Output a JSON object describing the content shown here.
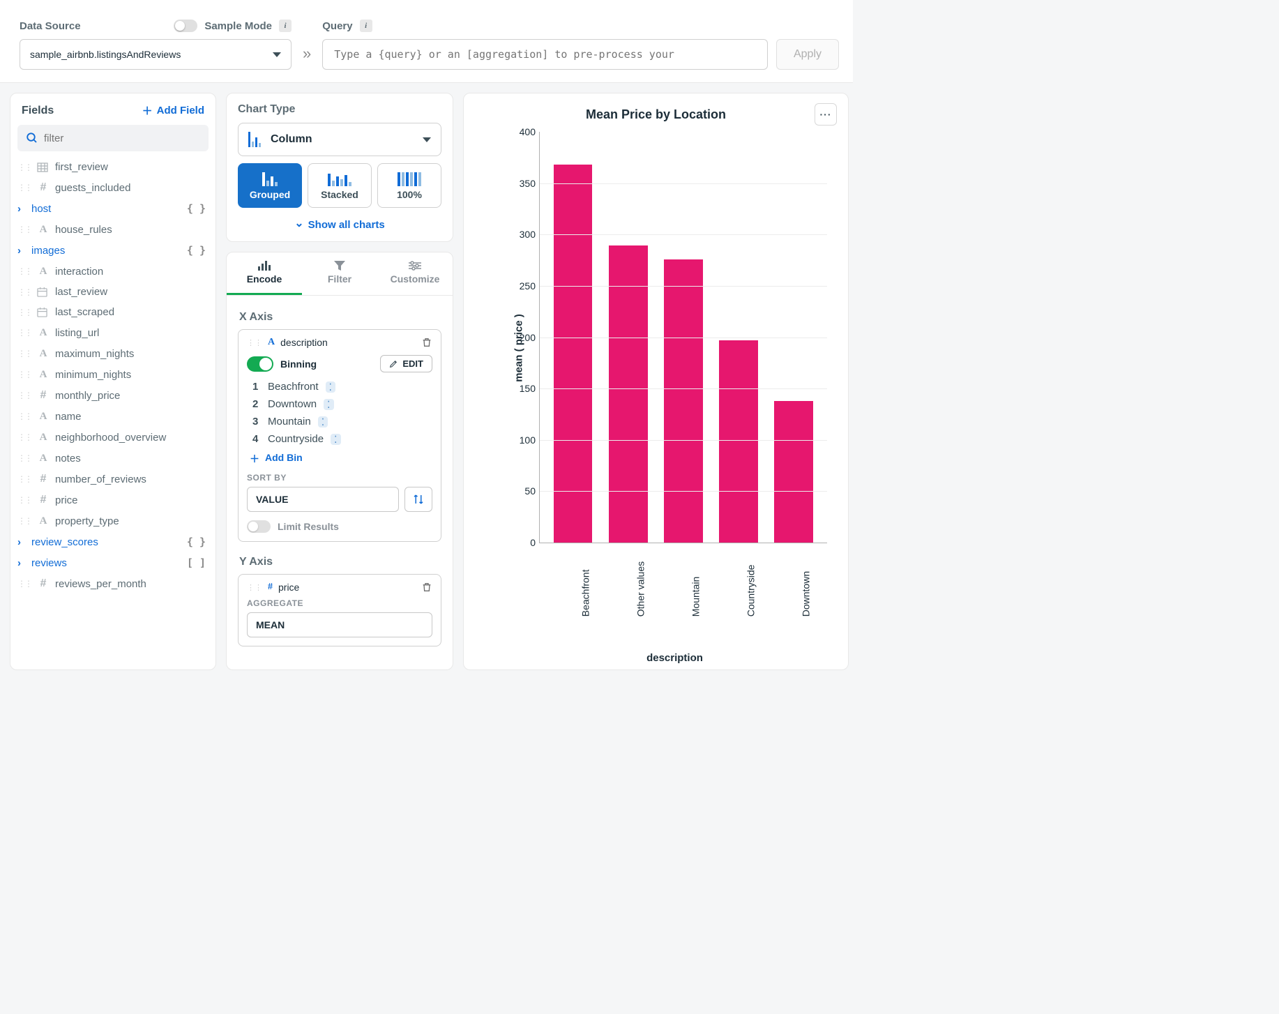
{
  "topbar": {
    "data_source_label": "Data Source",
    "sample_mode_label": "Sample Mode",
    "data_source_value": "sample_airbnb.listingsAndReviews",
    "query_label": "Query",
    "query_placeholder": "Type a {query} or an [aggregation] to pre-process your",
    "apply_label": "Apply"
  },
  "fields_panel": {
    "title": "Fields",
    "add_field_label": "Add Field",
    "filter_placeholder": "filter",
    "items": [
      {
        "icon": "table",
        "label": "first_review"
      },
      {
        "icon": "hash",
        "label": "guests_included"
      },
      {
        "icon": "expand",
        "label": "host",
        "suffix": "{ }"
      },
      {
        "icon": "text",
        "label": "house_rules"
      },
      {
        "icon": "expand",
        "label": "images",
        "suffix": "{ }"
      },
      {
        "icon": "text",
        "label": "interaction"
      },
      {
        "icon": "calendar",
        "label": "last_review"
      },
      {
        "icon": "calendar",
        "label": "last_scraped"
      },
      {
        "icon": "text",
        "label": "listing_url"
      },
      {
        "icon": "text",
        "label": "maximum_nights"
      },
      {
        "icon": "text",
        "label": "minimum_nights"
      },
      {
        "icon": "hash",
        "label": "monthly_price"
      },
      {
        "icon": "text",
        "label": "name"
      },
      {
        "icon": "text",
        "label": "neighborhood_overview"
      },
      {
        "icon": "text",
        "label": "notes"
      },
      {
        "icon": "hash",
        "label": "number_of_reviews"
      },
      {
        "icon": "hash",
        "label": "price"
      },
      {
        "icon": "text",
        "label": "property_type"
      },
      {
        "icon": "expand",
        "label": "review_scores",
        "suffix": "{ }"
      },
      {
        "icon": "expand",
        "label": "reviews",
        "suffix": "[ ]"
      },
      {
        "icon": "hash",
        "label": "reviews_per_month"
      }
    ]
  },
  "chart_type": {
    "title": "Chart Type",
    "selected": "Column",
    "subtypes": [
      "Grouped",
      "Stacked",
      "100%"
    ],
    "show_all": "Show all charts"
  },
  "encode": {
    "tabs": [
      "Encode",
      "Filter",
      "Customize"
    ],
    "x_axis_label": "X Axis",
    "x_field": "description",
    "binning_label": "Binning",
    "edit_label": "EDIT",
    "bins": [
      "Beachfront",
      "Downtown",
      "Mountain",
      "Countryside"
    ],
    "add_bin_label": "Add Bin",
    "sort_by_label": "SORT BY",
    "sort_value": "VALUE",
    "limit_label": "Limit Results",
    "y_axis_label": "Y Axis",
    "y_field": "price",
    "aggregate_label": "AGGREGATE",
    "aggregate_value": "MEAN"
  },
  "chart": {
    "title": "Mean Price by Location",
    "ylabel": "mean ( price )",
    "xlabel": "description",
    "ylim": [
      0,
      400
    ],
    "ytick_step": 50,
    "categories": [
      "Beachfront",
      "Other values",
      "Mountain",
      "Countryside",
      "Downtown"
    ],
    "values": [
      368,
      289,
      276,
      197,
      138
    ],
    "bar_color": "#e6176e",
    "grid_color": "#ececec",
    "axis_color": "#b0b0b0",
    "background": "#ffffff"
  }
}
